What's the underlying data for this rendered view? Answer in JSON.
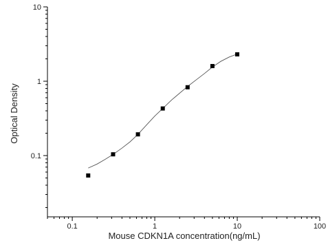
{
  "chart_data": {
    "type": "scatter",
    "title": "",
    "xlabel": "Mouse CDKN1A concentration(ng/mL)",
    "ylabel": "Optical Density",
    "x_scale": "log",
    "y_scale": "log",
    "xlim": [
      0.05,
      100
    ],
    "ylim": [
      0.015,
      10
    ],
    "x_ticks": [
      0.1,
      1,
      10,
      100
    ],
    "x_tick_labels": [
      "0.1",
      "1",
      "10",
      "100"
    ],
    "y_ticks": [
      0.1,
      1,
      10
    ],
    "y_tick_labels": [
      "0.1",
      "1",
      "10"
    ],
    "grid": false,
    "legend": "none",
    "series": [
      {
        "marker": "square",
        "x": [
          0.156,
          0.3125,
          0.625,
          1.25,
          2.5,
          5,
          10
        ],
        "y": [
          0.054,
          0.104,
          0.193,
          0.43,
          0.83,
          1.6,
          2.3
        ]
      }
    ],
    "fit_curve": {
      "x": [
        0.156,
        0.2,
        0.25,
        0.3125,
        0.4,
        0.5,
        0.625,
        0.8,
        1,
        1.25,
        1.6,
        2,
        2.5,
        3.2,
        4,
        5,
        6.3,
        8,
        10
      ],
      "y": [
        0.068,
        0.077,
        0.089,
        0.104,
        0.126,
        0.153,
        0.193,
        0.26,
        0.34,
        0.43,
        0.56,
        0.69,
        0.85,
        1.05,
        1.27,
        1.55,
        1.85,
        2.12,
        2.32
      ]
    },
    "colors": {
      "axis": "#000000",
      "marker": "#000000",
      "curve": "#555555",
      "text": "#222222"
    }
  }
}
